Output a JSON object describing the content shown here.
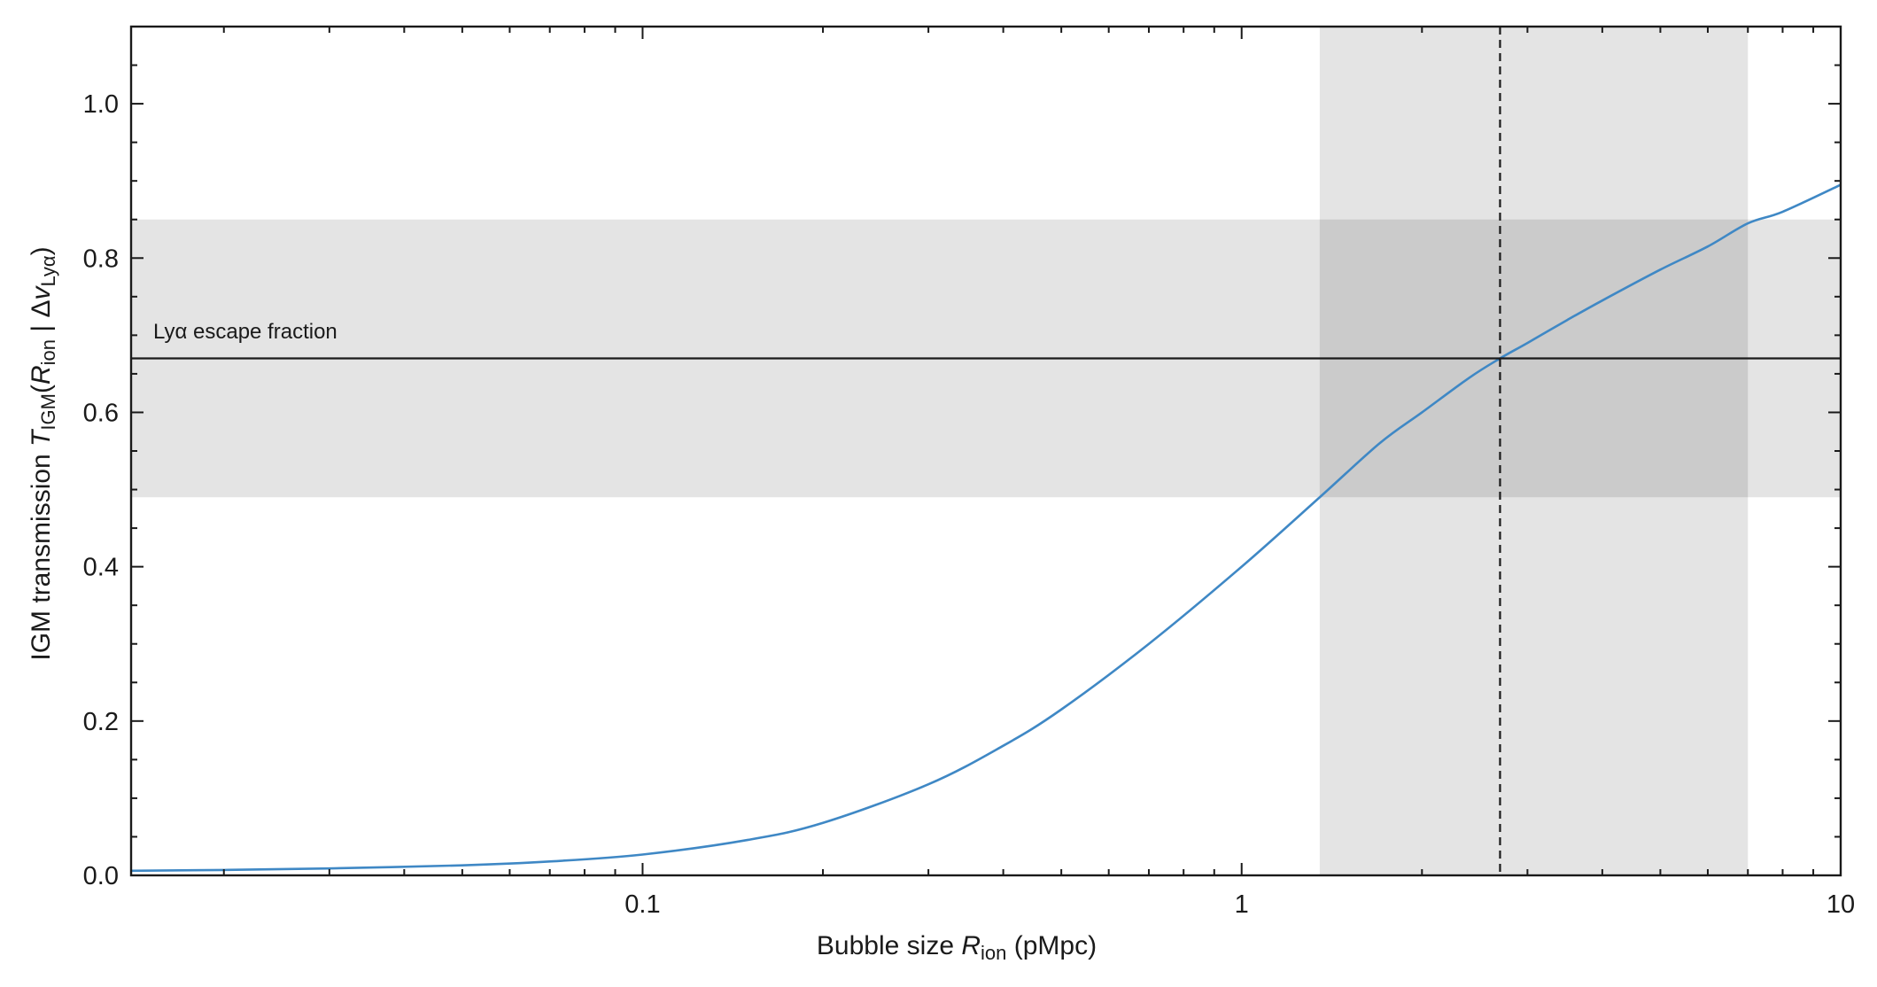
{
  "chart_data": {
    "type": "line",
    "x_scale": "log",
    "xlim": [
      0.014,
      10
    ],
    "ylim": [
      0.0,
      1.1
    ],
    "grid": false,
    "xlabel": {
      "prefix": "Bubble size ",
      "symbol": "R",
      "subscript": "ion",
      "unit": " (pMpc)"
    },
    "ylabel": {
      "prefix": "IGM transmission ",
      "symbol": "T",
      "subscript": "IGM",
      "open": "(",
      "cond_symbol": "R",
      "cond_subscript": "ion",
      "separator": " | Δ",
      "v_symbol": "v",
      "v_subscript": "Lyα",
      "close": ")"
    },
    "x_ticks": [
      {
        "value": 0.1,
        "label": "0.1"
      },
      {
        "value": 1,
        "label": "1"
      },
      {
        "value": 10,
        "label": "10"
      }
    ],
    "y_ticks": [
      {
        "value": 0.0,
        "label": "0.0"
      },
      {
        "value": 0.2,
        "label": "0.2"
      },
      {
        "value": 0.4,
        "label": "0.4"
      },
      {
        "value": 0.6,
        "label": "0.6"
      },
      {
        "value": 0.8,
        "label": "0.8"
      },
      {
        "value": 1.0,
        "label": "1.0"
      }
    ],
    "series": [
      {
        "color": "#3f88c5",
        "x": [
          0.014,
          0.02,
          0.03,
          0.05,
          0.07,
          0.1,
          0.15,
          0.2,
          0.3,
          0.4,
          0.5,
          0.7,
          1.0,
          1.35,
          1.7,
          2.0,
          2.4,
          2.7,
          3.0,
          3.5,
          4.0,
          5.0,
          6.0,
          7.0,
          8.0,
          10.0
        ],
        "y": [
          0.006,
          0.007,
          0.009,
          0.013,
          0.018,
          0.027,
          0.046,
          0.068,
          0.118,
          0.168,
          0.215,
          0.3,
          0.4,
          0.49,
          0.56,
          0.6,
          0.645,
          0.67,
          0.69,
          0.72,
          0.745,
          0.785,
          0.815,
          0.845,
          0.86,
          0.895
        ]
      }
    ],
    "horizontal_line": {
      "y": 0.67,
      "label": "Lyα escape fraction",
      "color": "#1a1a1a"
    },
    "horizontal_band": {
      "y0": 0.49,
      "y1": 0.85,
      "color": "#e4e4e4"
    },
    "vertical_line": {
      "x": 2.7,
      "style": "dashed",
      "color": "#1a1a1a"
    },
    "vertical_band": {
      "x0": 1.35,
      "x1": 7.0,
      "color": "#e4e4e4"
    },
    "overlap_color": "#cbcbcb"
  }
}
